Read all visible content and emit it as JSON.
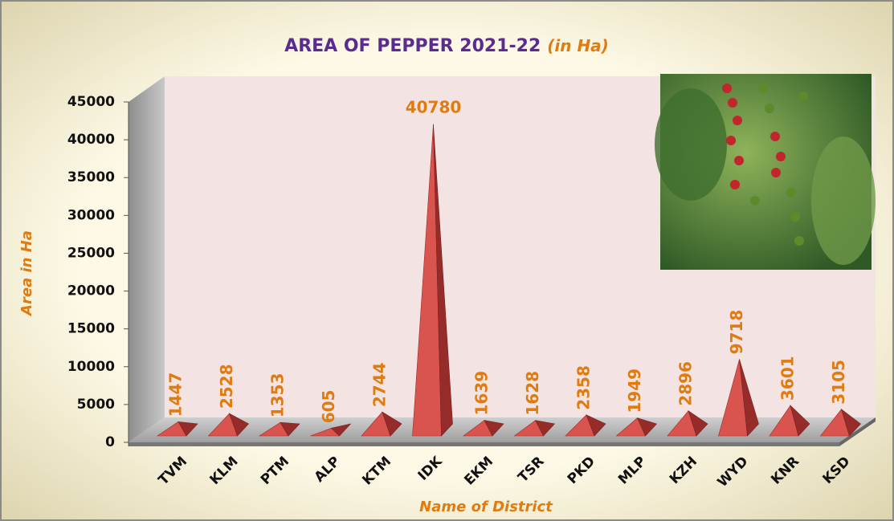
{
  "chart_data": {
    "type": "pyramid",
    "title": "AREA OF PEPPER 2021-22",
    "subtitle": "(in Ha)",
    "x_label": "Name of District",
    "y_label": "Area in Ha",
    "categories": [
      "TVM",
      "KLM",
      "PTM",
      "ALP",
      "KTM",
      "IDK",
      "EKM",
      "TSR",
      "PKD",
      "MLP",
      "KZH",
      "WYD",
      "KNR",
      "KSD"
    ],
    "values": [
      1447,
      2528,
      1353,
      605,
      2744,
      40780,
      1639,
      1628,
      2358,
      1949,
      2896,
      9718,
      3601,
      3105
    ],
    "color": "#d9534f",
    "ylim": [
      0,
      45000
    ],
    "yticks": [
      0,
      5000,
      10000,
      15000,
      20000,
      25000,
      30000,
      35000,
      40000,
      45000
    ],
    "grid": false
  }
}
